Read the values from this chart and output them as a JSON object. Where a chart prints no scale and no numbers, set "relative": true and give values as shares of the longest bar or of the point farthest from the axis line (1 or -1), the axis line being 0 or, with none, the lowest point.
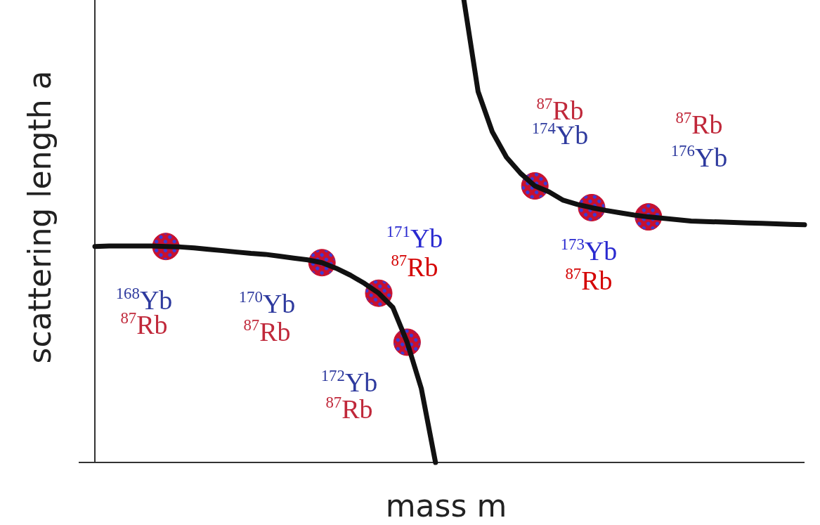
{
  "chart_data": {
    "type": "line",
    "relative": true,
    "xlabel": "mass m",
    "ylabel": "scattering length a",
    "marker": "none",
    "line_style": "solid",
    "categories": [
      null,
      null,
      null,
      null,
      null,
      null,
      null,
      null,
      null,
      null,
      null,
      null,
      null,
      null,
      null,
      null,
      null,
      null,
      null,
      null,
      null,
      null,
      null,
      null,
      null,
      null,
      null,
      null,
      null,
      null,
      null,
      null,
      null,
      null,
      null,
      null,
      null,
      null,
      null,
      null,
      null,
      null,
      null,
      null,
      null,
      null,
      null,
      null,
      null,
      null,
      null
    ],
    "series": [
      {
        "color": "#111111",
        "values": [
          0.467,
          0.468,
          0.468,
          0.468,
          0.468,
          0.467,
          0.466,
          0.464,
          0.461,
          0.458,
          0.455,
          0.452,
          0.45,
          0.446,
          0.442,
          0.438,
          0.432,
          0.42,
          0.405,
          0.387,
          0.366,
          0.335,
          0.26,
          0.16,
          0,
          null,
          null,
          null,
          null,
          null,
          null,
          null,
          null,
          null,
          null,
          null,
          null,
          null,
          null,
          null,
          null,
          null,
          null,
          null,
          null,
          null,
          null,
          null,
          null,
          null,
          null
        ]
      },
      {
        "color": "#111111",
        "values": [
          null,
          null,
          null,
          null,
          null,
          null,
          null,
          null,
          null,
          null,
          null,
          null,
          null,
          null,
          null,
          null,
          null,
          null,
          null,
          null,
          null,
          null,
          null,
          null,
          null,
          null,
          1,
          0.802,
          0.715,
          0.66,
          0.625,
          0.598,
          0.585,
          0.567,
          0.558,
          0.551,
          0.545,
          0.54,
          0.535,
          0.531,
          0.528,
          0.525,
          0.522,
          0.521,
          0.52,
          0.519,
          0.518,
          0.517,
          0.516,
          0.515,
          0.514
        ]
      }
    ],
    "annotations": [
      "$^{168}$Yb",
      "$^{87}$Rb",
      "$^{170}$Yb",
      "$^{87}$Rb",
      "$^{171}$Yb",
      "$^{87}$Rb",
      "$^{172}$Yb",
      "$^{87}$Rb",
      "$^{87}$Rb",
      "$^{174}$Yb",
      "$^{173}$Yb",
      "$^{87}$Rb",
      "$^{87}$Rb",
      "$^{176}$Yb"
    ]
  }
}
